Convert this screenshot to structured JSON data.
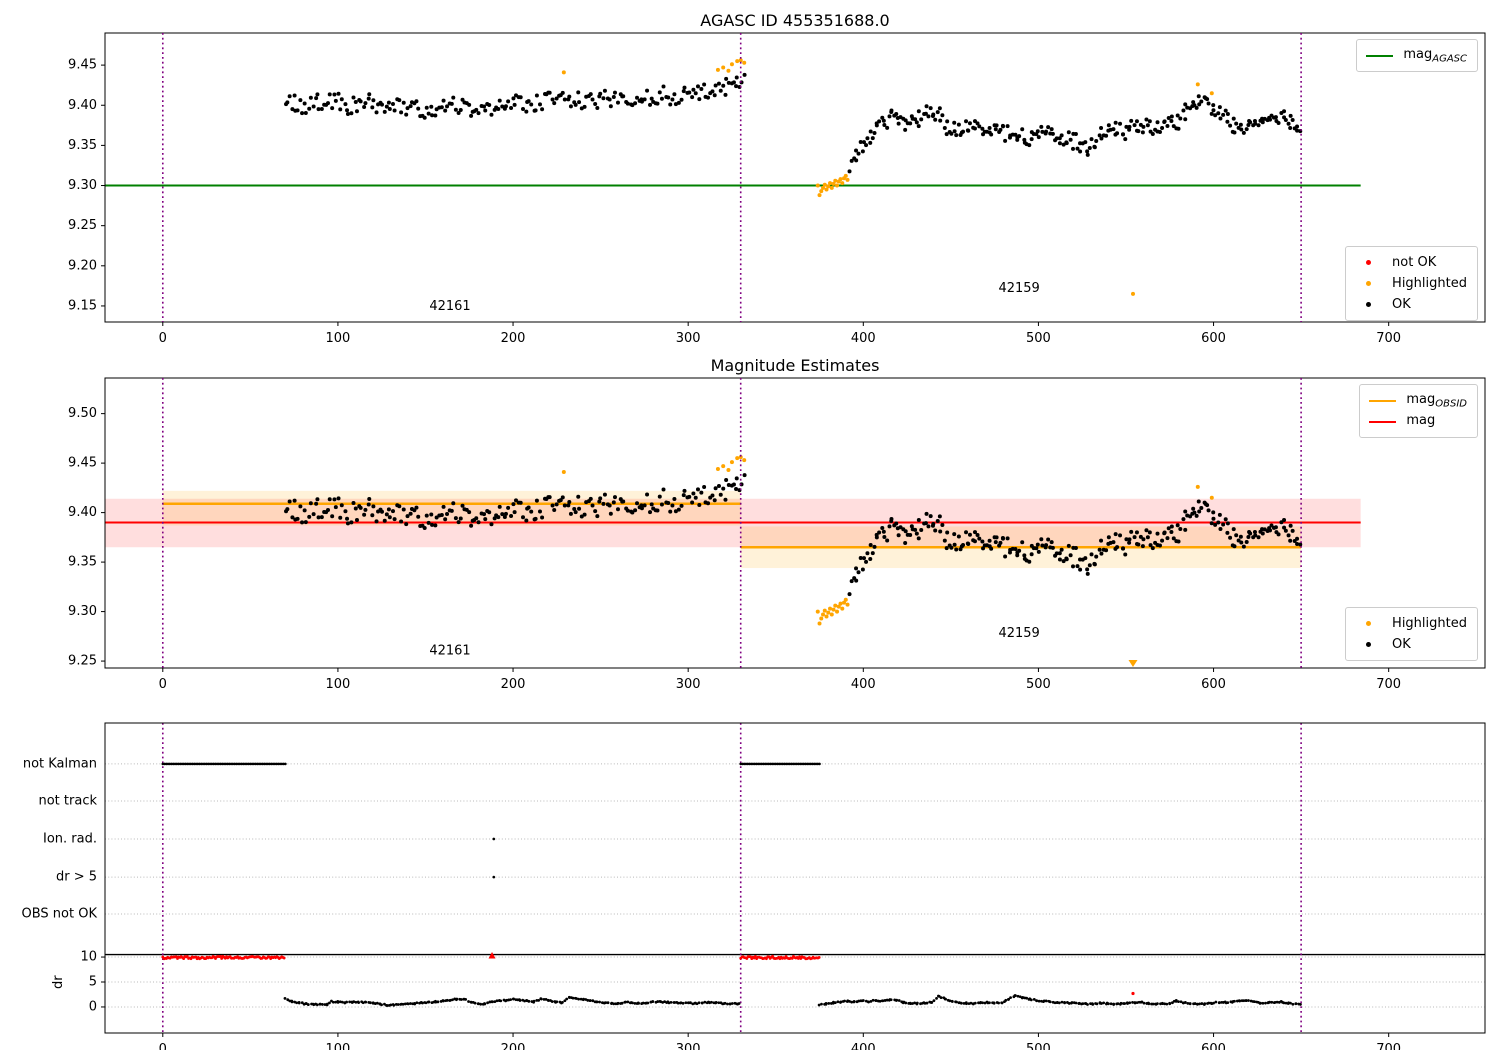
{
  "figure": {
    "background": "#ffffff"
  },
  "colors": {
    "ok": "#000000",
    "highlighted": "#ffa500",
    "not_ok": "#ff0000",
    "mag_agasc_line": "#008000",
    "mag_obsid_line": "#ffa500",
    "mag_line": "#ff0000",
    "divider": "#800080",
    "grid": "#b8b8b8",
    "spine": "#000000"
  },
  "legends": {
    "mag_agasc": {
      "main": "mag",
      "sub": "AGASC"
    },
    "p1_items": [
      {
        "label": "not OK"
      },
      {
        "label": "Highlighted"
      },
      {
        "label": "OK"
      }
    ],
    "p2_lines": [
      {
        "main": "mag",
        "sub": "OBSID"
      },
      {
        "main": "mag",
        "sub": ""
      }
    ],
    "p2_items": [
      {
        "label": "Highlighted"
      },
      {
        "label": "OK"
      }
    ]
  },
  "mag_series": {
    "spacing": 1.3,
    "jitter": 0.011,
    "ok_trend_seg1": [
      [
        70,
        9.41
      ],
      [
        76,
        9.403
      ],
      [
        82,
        9.399
      ],
      [
        88,
        9.404
      ],
      [
        94,
        9.407
      ],
      [
        100,
        9.404
      ],
      [
        106,
        9.398
      ],
      [
        112,
        9.401
      ],
      [
        118,
        9.404
      ],
      [
        124,
        9.399
      ],
      [
        130,
        9.401
      ],
      [
        136,
        9.398
      ],
      [
        142,
        9.396
      ],
      [
        148,
        9.394
      ],
      [
        154,
        9.392
      ],
      [
        160,
        9.396
      ],
      [
        166,
        9.399
      ],
      [
        172,
        9.396
      ],
      [
        178,
        9.398
      ],
      [
        184,
        9.395
      ],
      [
        190,
        9.399
      ],
      [
        196,
        9.403
      ],
      [
        202,
        9.405
      ],
      [
        208,
        9.402
      ],
      [
        214,
        9.404
      ],
      [
        220,
        9.406
      ],
      [
        226,
        9.41
      ],
      [
        232,
        9.407
      ],
      [
        238,
        9.405
      ],
      [
        244,
        9.409
      ],
      [
        250,
        9.406
      ],
      [
        256,
        9.409
      ],
      [
        262,
        9.411
      ],
      [
        268,
        9.408
      ],
      [
        274,
        9.41
      ],
      [
        280,
        9.412
      ],
      [
        286,
        9.414
      ],
      [
        292,
        9.41
      ],
      [
        298,
        9.412
      ],
      [
        304,
        9.415
      ],
      [
        310,
        9.417
      ],
      [
        316,
        9.42
      ],
      [
        322,
        9.424
      ],
      [
        328,
        9.429
      ],
      [
        332,
        9.432
      ]
    ],
    "ok_trend_seg2": [
      [
        392,
        9.322
      ],
      [
        396,
        9.338
      ],
      [
        400,
        9.348
      ],
      [
        404,
        9.358
      ],
      [
        408,
        9.368
      ],
      [
        412,
        9.377
      ],
      [
        416,
        9.383
      ],
      [
        420,
        9.384
      ],
      [
        424,
        9.379
      ],
      [
        428,
        9.388
      ],
      [
        432,
        9.383
      ],
      [
        436,
        9.389
      ],
      [
        440,
        9.392
      ],
      [
        444,
        9.387
      ],
      [
        448,
        9.372
      ],
      [
        452,
        9.37
      ],
      [
        456,
        9.374
      ],
      [
        460,
        9.371
      ],
      [
        464,
        9.376
      ],
      [
        468,
        9.371
      ],
      [
        472,
        9.373
      ],
      [
        476,
        9.37
      ],
      [
        480,
        9.365
      ],
      [
        484,
        9.363
      ],
      [
        488,
        9.367
      ],
      [
        492,
        9.362
      ],
      [
        496,
        9.36
      ],
      [
        500,
        9.365
      ],
      [
        504,
        9.363
      ],
      [
        508,
        9.36
      ],
      [
        512,
        9.358
      ],
      [
        516,
        9.357
      ],
      [
        520,
        9.355
      ],
      [
        524,
        9.351
      ],
      [
        528,
        9.347
      ],
      [
        532,
        9.35
      ],
      [
        536,
        9.361
      ],
      [
        540,
        9.369
      ],
      [
        544,
        9.371
      ],
      [
        548,
        9.367
      ],
      [
        552,
        9.37
      ],
      [
        556,
        9.373
      ],
      [
        560,
        9.374
      ],
      [
        564,
        9.369
      ],
      [
        568,
        9.375
      ],
      [
        572,
        9.371
      ],
      [
        576,
        9.376
      ],
      [
        580,
        9.381
      ],
      [
        584,
        9.391
      ],
      [
        588,
        9.403
      ],
      [
        592,
        9.409
      ],
      [
        596,
        9.404
      ],
      [
        600,
        9.397
      ],
      [
        604,
        9.389
      ],
      [
        608,
        9.381
      ],
      [
        612,
        9.376
      ],
      [
        616,
        9.373
      ],
      [
        620,
        9.374
      ],
      [
        624,
        9.378
      ],
      [
        628,
        9.379
      ],
      [
        632,
        9.375
      ],
      [
        636,
        9.379
      ],
      [
        640,
        9.384
      ],
      [
        644,
        9.381
      ],
      [
        648,
        9.378
      ],
      [
        650,
        9.377
      ]
    ],
    "highlighted_seg1": [
      [
        229,
        9.441
      ],
      [
        317,
        9.444
      ],
      [
        320,
        9.447
      ],
      [
        323,
        9.443
      ],
      [
        325,
        9.451
      ],
      [
        328,
        9.455
      ],
      [
        330,
        9.456
      ],
      [
        332,
        9.453
      ]
    ],
    "highlighted_seg2_run": [
      [
        374,
        9.3
      ],
      [
        375,
        9.288
      ],
      [
        376,
        9.293
      ],
      [
        377,
        9.297
      ],
      [
        378,
        9.301
      ],
      [
        379,
        9.295
      ],
      [
        380,
        9.299
      ],
      [
        381,
        9.303
      ],
      [
        382,
        9.297
      ],
      [
        383,
        9.302
      ],
      [
        384,
        9.306
      ],
      [
        385,
        9.3
      ],
      [
        386,
        9.305
      ],
      [
        387,
        9.308
      ],
      [
        388,
        9.303
      ],
      [
        389,
        9.309
      ],
      [
        390,
        9.312
      ],
      [
        391,
        9.307
      ]
    ],
    "highlighted_late": [
      [
        591,
        9.426
      ],
      [
        599,
        9.415
      ]
    ],
    "outlier": {
      "x": 554,
      "mag": 9.165
    }
  },
  "chart_data": [
    {
      "type": "scatter",
      "title": "AGASC ID 455351688.0",
      "xlim": [
        -33,
        755
      ],
      "ylim": [
        9.13,
        9.49
      ],
      "xticks": [
        0,
        100,
        200,
        300,
        400,
        500,
        600,
        700
      ],
      "yticks": [
        "9.15",
        "9.20",
        "9.25",
        "9.30",
        "9.35",
        "9.40",
        "9.45"
      ],
      "ytick_values": [
        9.15,
        9.2,
        9.25,
        9.3,
        9.35,
        9.4,
        9.45
      ],
      "agasc_line": {
        "value": 9.3,
        "x_start": -33,
        "x_end": 684
      },
      "dividers": [
        0,
        330,
        650
      ],
      "annotations": [
        {
          "text": "42161",
          "x": 164,
          "y": 9.149
        },
        {
          "text": "42159",
          "x": 489,
          "y": 9.172
        }
      ]
    },
    {
      "type": "scatter",
      "title": "Magnitude Estimates",
      "xlim": [
        -33,
        755
      ],
      "ylim": [
        9.243,
        9.536
      ],
      "xticks": [
        0,
        100,
        200,
        300,
        400,
        500,
        600,
        700
      ],
      "yticks": [
        "9.25",
        "9.30",
        "9.35",
        "9.40",
        "9.45",
        "9.50"
      ],
      "ytick_values": [
        9.25,
        9.3,
        9.35,
        9.4,
        9.45,
        9.5
      ],
      "mag_line": {
        "value": 9.39,
        "band": [
          9.365,
          9.414
        ],
        "x_start": -33,
        "x_end": 684
      },
      "obsid_lines": [
        {
          "x_start": 0,
          "x_end": 330,
          "value": 9.409,
          "band": [
            9.387,
            9.422
          ]
        },
        {
          "x_start": 330,
          "x_end": 650,
          "value": 9.365,
          "band": [
            9.344,
            9.386
          ]
        }
      ],
      "dividers": [
        0,
        330,
        650
      ],
      "annotations": [
        {
          "text": "42161",
          "x": 164,
          "y": 9.26
        },
        {
          "text": "42159",
          "x": 489,
          "y": 9.278
        }
      ],
      "clipped_low_marker": {
        "x": 554
      }
    },
    {
      "type": "flags",
      "categories": [
        "not Kalman",
        "not track",
        "Ion. rad.",
        "dr > 5",
        "OBS not OK"
      ],
      "flag_ranges": [
        [
          [
            0,
            70
          ],
          [
            330,
            375
          ]
        ],
        [],
        [
          [
            189,
            189
          ]
        ],
        [
          [
            189,
            189
          ]
        ],
        []
      ],
      "dr_ticks": [
        10,
        5,
        0
      ],
      "ylabel": "dr",
      "xlim": [
        -33,
        755
      ],
      "xticks": [
        0,
        100,
        200,
        300,
        400,
        500,
        600,
        700
      ],
      "separator_value": 10.5,
      "dr_red_ranges": [
        [
          0,
          70
        ],
        [
          330,
          375
        ]
      ],
      "dr_red_level": 9.9,
      "dr_clipped_points": [
        188
      ],
      "dr_red_points": [
        [
          554,
          2.7
        ]
      ],
      "dr_spacing": 1.3,
      "dr_jitter": 0.12,
      "dr_trend_seg1": [
        [
          70,
          1.6
        ],
        [
          74,
          1.1
        ],
        [
          78,
          0.8
        ],
        [
          82,
          0.6
        ],
        [
          86,
          0.5
        ],
        [
          90,
          0.45
        ],
        [
          94,
          0.5
        ],
        [
          96,
          1.1
        ],
        [
          100,
          1.0
        ],
        [
          104,
          0.9
        ],
        [
          108,
          1.0
        ],
        [
          112,
          0.95
        ],
        [
          116,
          0.9
        ],
        [
          120,
          0.8
        ],
        [
          124,
          0.55
        ],
        [
          128,
          0.4
        ],
        [
          132,
          0.45
        ],
        [
          136,
          0.55
        ],
        [
          140,
          0.6
        ],
        [
          144,
          0.7
        ],
        [
          148,
          0.85
        ],
        [
          152,
          0.95
        ],
        [
          156,
          1.05
        ],
        [
          160,
          1.2
        ],
        [
          164,
          1.4
        ],
        [
          168,
          1.55
        ],
        [
          172,
          1.6
        ],
        [
          176,
          1.0
        ],
        [
          180,
          0.55
        ],
        [
          184,
          0.7
        ],
        [
          188,
          1.0
        ],
        [
          192,
          1.2
        ],
        [
          196,
          1.35
        ],
        [
          200,
          1.5
        ],
        [
          204,
          1.35
        ],
        [
          208,
          1.2
        ],
        [
          212,
          1.05
        ],
        [
          216,
          1.6
        ],
        [
          220,
          1.3
        ],
        [
          224,
          1.0
        ],
        [
          228,
          0.85
        ],
        [
          232,
          1.9
        ],
        [
          236,
          1.7
        ],
        [
          240,
          1.45
        ],
        [
          244,
          1.25
        ],
        [
          248,
          1.05
        ],
        [
          252,
          0.9
        ],
        [
          256,
          0.75
        ],
        [
          260,
          0.7
        ],
        [
          264,
          0.95
        ],
        [
          268,
          0.85
        ],
        [
          272,
          0.7
        ],
        [
          276,
          0.85
        ],
        [
          280,
          1.0
        ],
        [
          284,
          1.05
        ],
        [
          288,
          0.95
        ],
        [
          292,
          0.85
        ],
        [
          296,
          0.8
        ],
        [
          300,
          0.75
        ],
        [
          304,
          0.7
        ],
        [
          308,
          0.8
        ],
        [
          312,
          0.95
        ],
        [
          316,
          0.85
        ],
        [
          320,
          0.7
        ],
        [
          324,
          0.6
        ],
        [
          328,
          0.65
        ],
        [
          330,
          0.7
        ]
      ],
      "dr_trend_seg2": [
        [
          375,
          0.5
        ],
        [
          379,
          0.65
        ],
        [
          383,
          0.85
        ],
        [
          387,
          1.0
        ],
        [
          391,
          1.15
        ],
        [
          395,
          1.0
        ],
        [
          399,
          1.25
        ],
        [
          403,
          1.1
        ],
        [
          407,
          1.35
        ],
        [
          411,
          1.2
        ],
        [
          415,
          1.45
        ],
        [
          419,
          1.3
        ],
        [
          423,
          0.95
        ],
        [
          427,
          0.75
        ],
        [
          431,
          0.7
        ],
        [
          435,
          0.8
        ],
        [
          439,
          1.0
        ],
        [
          443,
          2.1
        ],
        [
          447,
          1.6
        ],
        [
          451,
          1.1
        ],
        [
          455,
          0.9
        ],
        [
          459,
          0.75
        ],
        [
          463,
          0.7
        ],
        [
          467,
          0.8
        ],
        [
          471,
          0.9
        ],
        [
          475,
          0.85
        ],
        [
          479,
          0.8
        ],
        [
          483,
          1.6
        ],
        [
          487,
          2.2
        ],
        [
          491,
          1.9
        ],
        [
          495,
          1.55
        ],
        [
          499,
          1.35
        ],
        [
          503,
          1.15
        ],
        [
          507,
          1.0
        ],
        [
          511,
          0.9
        ],
        [
          515,
          0.85
        ],
        [
          519,
          0.8
        ],
        [
          523,
          0.7
        ],
        [
          527,
          0.6
        ],
        [
          531,
          0.55
        ],
        [
          535,
          0.75
        ],
        [
          539,
          0.7
        ],
        [
          543,
          0.6
        ],
        [
          547,
          0.65
        ],
        [
          551,
          0.75
        ],
        [
          555,
          0.85
        ],
        [
          559,
          0.95
        ],
        [
          563,
          0.7
        ],
        [
          567,
          0.6
        ],
        [
          571,
          0.65
        ],
        [
          575,
          0.7
        ],
        [
          579,
          1.25
        ],
        [
          583,
          0.9
        ],
        [
          587,
          0.7
        ],
        [
          591,
          0.6
        ],
        [
          595,
          0.55
        ],
        [
          599,
          0.75
        ],
        [
          603,
          0.95
        ],
        [
          607,
          0.9
        ],
        [
          611,
          1.05
        ],
        [
          615,
          1.2
        ],
        [
          619,
          1.3
        ],
        [
          623,
          1.0
        ],
        [
          627,
          0.8
        ],
        [
          631,
          0.85
        ],
        [
          635,
          0.95
        ],
        [
          639,
          1.0
        ],
        [
          643,
          0.75
        ],
        [
          647,
          0.6
        ],
        [
          650,
          0.55
        ]
      ],
      "dividers": [
        0,
        330,
        650
      ]
    }
  ]
}
